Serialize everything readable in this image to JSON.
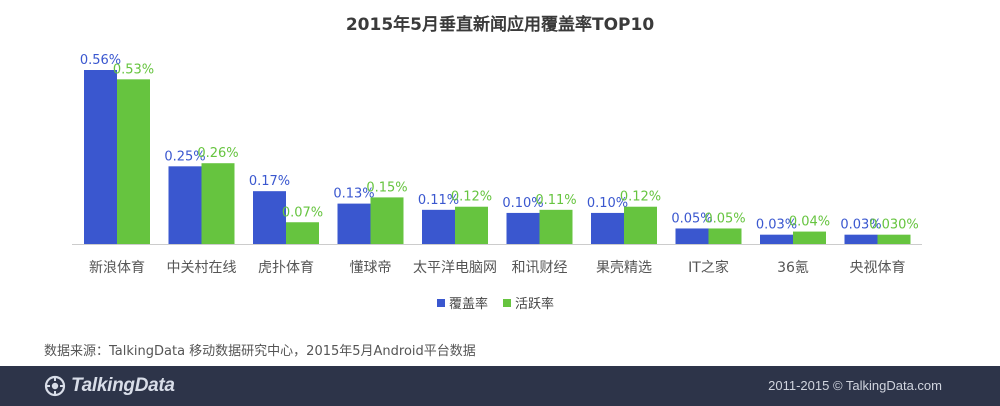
{
  "chart_data": {
    "type": "bar",
    "title": "2015年5月垂直新闻应用覆盖率TOP10",
    "categories": [
      "新浪体育",
      "中关村在线",
      "虎扑体育",
      "懂球帝",
      "太平洋电脑网",
      "和讯财经",
      "果壳精选",
      "IT之家",
      "36氪",
      "央视体育"
    ],
    "series": [
      {
        "name": "覆盖率",
        "color": "#3a57cf",
        "values": [
          0.56,
          0.25,
          0.17,
          0.13,
          0.11,
          0.1,
          0.1,
          0.05,
          0.03,
          0.03
        ],
        "labels": [
          "0.56%",
          "0.25%",
          "0.17%",
          "0.13%",
          "0.11%",
          "0.10%",
          "0.10%",
          "0.05%",
          "0.03%",
          "0.03%"
        ]
      },
      {
        "name": "活跃率",
        "color": "#66c43f",
        "values": [
          0.53,
          0.26,
          0.07,
          0.15,
          0.12,
          0.11,
          0.12,
          0.05,
          0.04,
          0.03
        ],
        "labels": [
          "0.53%",
          "0.26%",
          "0.07%",
          "0.15%",
          "0.12%",
          "0.11%",
          "0.12%",
          "0.05%",
          "0.04%",
          "0.030%"
        ]
      }
    ],
    "ylim": [
      0,
      0.56
    ],
    "grid": false,
    "legend": "bottom-center"
  },
  "source": "数据来源：TalkingData 移动数据研究中心，2015年5月Android平台数据",
  "footer": {
    "logo_text": "TalkingData",
    "copyright": "2011-2015 © TalkingData.com"
  }
}
